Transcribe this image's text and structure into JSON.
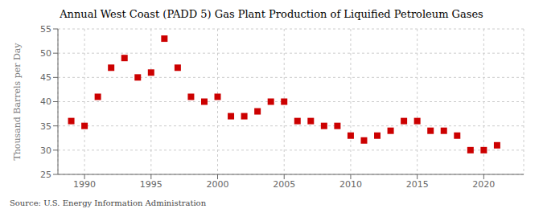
{
  "chart_data": {
    "type": "scatter",
    "title": "Annual West Coast (PADD 5) Gas Plant Production of Liquified Petroleum Gases",
    "ylabel": "Thousand Barrels per Day",
    "annotations": [
      "Source: U.S. Energy Information Administration"
    ],
    "x": [
      1989,
      1990,
      1991,
      1992,
      1993,
      1994,
      1995,
      1996,
      1997,
      1998,
      1999,
      2000,
      2001,
      2002,
      2003,
      2004,
      2005,
      2006,
      2007,
      2008,
      2009,
      2010,
      2011,
      2012,
      2013,
      2014,
      2015,
      2016,
      2017,
      2018,
      2019,
      2020,
      2021
    ],
    "values": [
      36,
      35,
      41,
      47,
      49,
      45,
      46,
      53,
      47,
      41,
      40,
      41,
      37,
      37,
      38,
      40,
      40,
      36,
      36,
      35,
      35,
      33,
      32,
      33,
      34,
      36,
      36,
      34,
      34,
      33,
      30,
      30,
      31
    ],
    "color": "#cc0000",
    "marker": "square",
    "xlim": [
      1988,
      2023
    ],
    "ylim": [
      25,
      55
    ],
    "xticks": [
      1990,
      1995,
      2000,
      2005,
      2010,
      2015,
      2020
    ],
    "yticks": [
      25,
      30,
      35,
      40,
      45,
      50,
      55
    ],
    "grid": true
  }
}
